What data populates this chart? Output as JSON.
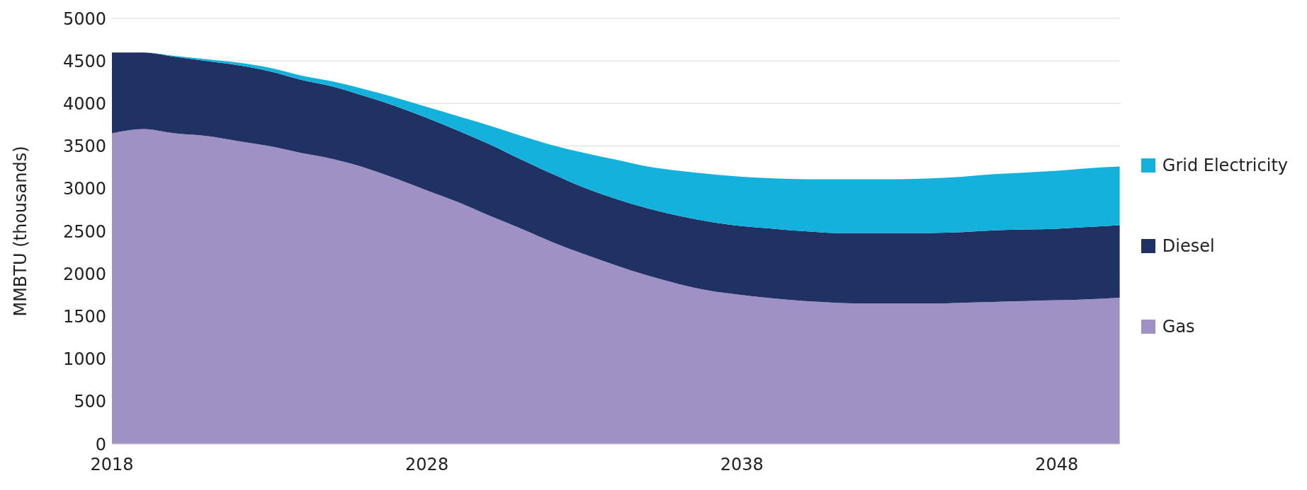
{
  "chart_data": {
    "type": "area",
    "stacked": true,
    "ylabel": "MMBTU (thousands)",
    "x": [
      2018,
      2019,
      2020,
      2021,
      2022,
      2023,
      2024,
      2025,
      2026,
      2027,
      2028,
      2029,
      2030,
      2031,
      2032,
      2033,
      2034,
      2035,
      2036,
      2037,
      2038,
      2039,
      2040,
      2041,
      2042,
      2043,
      2044,
      2045,
      2046,
      2047,
      2048,
      2049,
      2050
    ],
    "series": [
      {
        "name": "Gas",
        "color": "#a091c4",
        "values": [
          3650,
          3700,
          3650,
          3620,
          3560,
          3500,
          3420,
          3350,
          3250,
          3120,
          2980,
          2840,
          2680,
          2530,
          2370,
          2230,
          2100,
          1980,
          1880,
          1800,
          1750,
          1710,
          1680,
          1660,
          1650,
          1650,
          1650,
          1660,
          1670,
          1680,
          1690,
          1700,
          1720
        ]
      },
      {
        "name": "Diesel",
        "color": "#203263",
        "values": [
          950,
          900,
          900,
          880,
          890,
          880,
          860,
          850,
          840,
          850,
          850,
          840,
          840,
          810,
          800,
          780,
          780,
          790,
          800,
          810,
          810,
          820,
          820,
          820,
          830,
          830,
          830,
          830,
          840,
          840,
          840,
          850,
          850
        ]
      },
      {
        "name": "Grid Electricity",
        "color": "#14b1dd",
        "values": [
          0,
          0,
          10,
          20,
          30,
          40,
          50,
          60,
          80,
          100,
          130,
          170,
          220,
          280,
          340,
          410,
          460,
          490,
          530,
          560,
          580,
          590,
          610,
          630,
          630,
          630,
          640,
          650,
          660,
          670,
          680,
          690,
          690
        ]
      }
    ],
    "xlim": [
      2018,
      2050
    ],
    "xticks": [
      2018,
      2028,
      2038,
      2048
    ],
    "ylim": [
      0,
      5000
    ],
    "yticks": [
      0,
      500,
      1000,
      1500,
      2000,
      2500,
      3000,
      3500,
      4000,
      4500,
      5000
    ],
    "grid": "y",
    "legend": "right"
  }
}
